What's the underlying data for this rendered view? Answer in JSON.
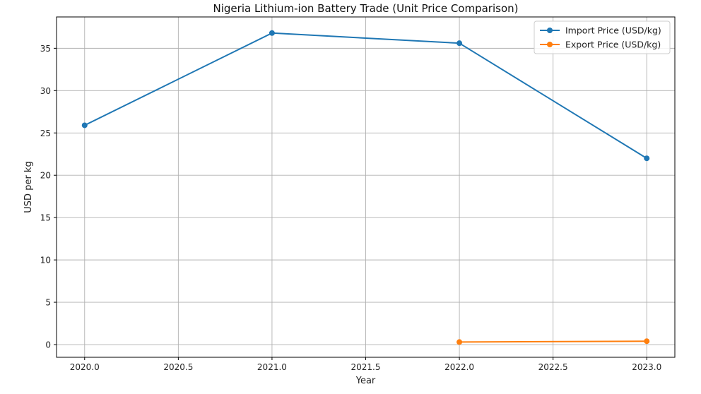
{
  "chart_data": {
    "type": "line",
    "title": "Nigeria Lithium-ion Battery Trade (Unit Price Comparison)",
    "xlabel": "Year",
    "ylabel": "USD per kg",
    "xlim": [
      2019.85,
      2023.15
    ],
    "ylim": [
      -1.5,
      38.7
    ],
    "x_ticks": [
      2020.0,
      2020.5,
      2021.0,
      2021.5,
      2022.0,
      2022.5,
      2023.0
    ],
    "x_tick_labels": [
      "2020.0",
      "2020.5",
      "2021.0",
      "2021.5",
      "2022.0",
      "2022.5",
      "2023.0"
    ],
    "y_ticks": [
      0,
      5,
      10,
      15,
      20,
      25,
      30,
      35
    ],
    "y_tick_labels": [
      "0",
      "5",
      "10",
      "15",
      "20",
      "25",
      "30",
      "35"
    ],
    "grid": true,
    "legend_position": "top-right",
    "series": [
      {
        "name": "Import Price (USD/kg)",
        "color": "#1f77b4",
        "x": [
          2020,
          2021,
          2022,
          2023
        ],
        "y": [
          25.9,
          36.8,
          35.6,
          22.0
        ]
      },
      {
        "name": "Export Price (USD/kg)",
        "color": "#ff7f0e",
        "x": [
          2022,
          2023
        ],
        "y": [
          0.3,
          0.4
        ]
      }
    ]
  }
}
